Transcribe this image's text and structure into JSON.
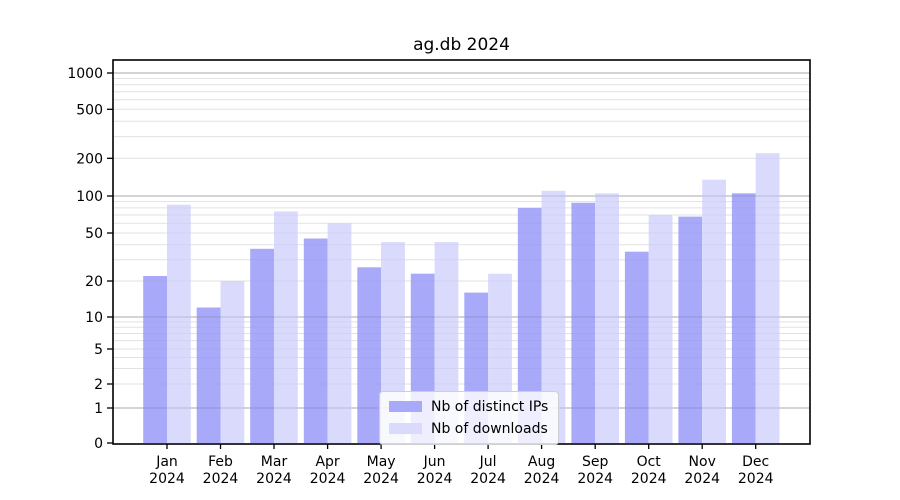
{
  "title": "ag.db 2024",
  "chart_data": {
    "type": "bar",
    "title": "ag.db 2024",
    "categories": [
      "Jan 2024",
      "Feb 2024",
      "Mar 2024",
      "Apr 2024",
      "May 2024",
      "Jun 2024",
      "Jul 2024",
      "Aug 2024",
      "Sep 2024",
      "Oct 2024",
      "Nov 2024",
      "Dec 2024"
    ],
    "series": [
      {
        "name": "Nb of distinct IPs",
        "color": "#a8aaf9",
        "values": [
          22,
          12,
          37,
          45,
          26,
          23,
          16,
          80,
          88,
          35,
          68,
          105
        ]
      },
      {
        "name": "Nb of downloads",
        "color": "#dadbfc",
        "values": [
          85,
          20,
          75,
          60,
          42,
          42,
          23,
          110,
          105,
          70,
          135,
          220
        ]
      }
    ],
    "y_ticks": [
      0,
      1,
      2,
      5,
      10,
      20,
      50,
      100,
      200,
      500,
      1000
    ],
    "y_scale": "asinh (log-like, 0 included)",
    "ylim": [
      0,
      1500
    ],
    "xlabel": "",
    "ylabel": "",
    "grid": true,
    "legend_position": "lower center",
    "colors": {
      "major_grid": "#b0b0b0",
      "minor_grid": "#e4e4e4",
      "axis": "#000000",
      "background": "#ffffff"
    }
  }
}
